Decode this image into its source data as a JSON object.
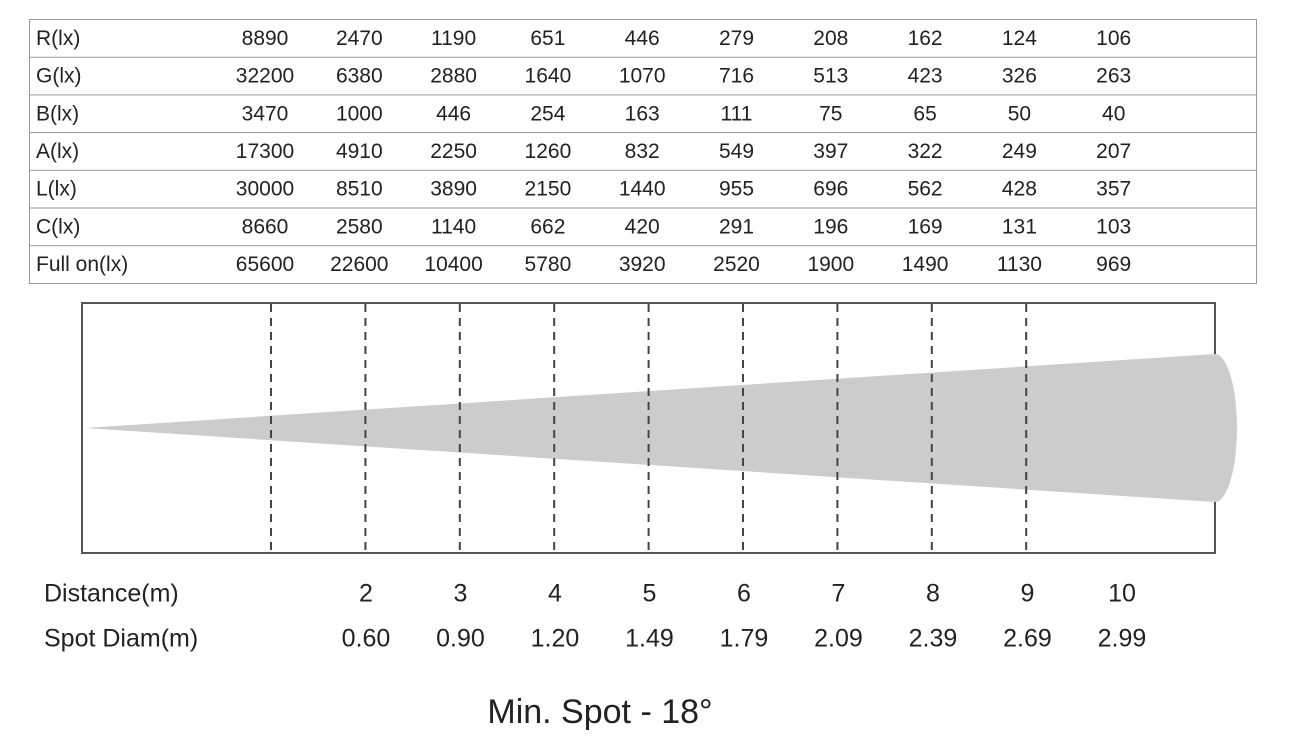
{
  "table": {
    "rows": [
      {
        "label": "R(lx)",
        "values": [
          "8890",
          "2470",
          "1190",
          "651",
          "446",
          "279",
          "208",
          "162",
          "124",
          "106"
        ]
      },
      {
        "label": "G(lx)",
        "values": [
          "32200",
          "6380",
          "2880",
          "1640",
          "1070",
          "716",
          "513",
          "423",
          "326",
          "263"
        ]
      },
      {
        "label": "B(lx)",
        "values": [
          "3470",
          "1000",
          "446",
          "254",
          "163",
          "111",
          "75",
          "65",
          "50",
          "40"
        ]
      },
      {
        "label": "A(lx)",
        "values": [
          "17300",
          "4910",
          "2250",
          "1260",
          "832",
          "549",
          "397",
          "322",
          "249",
          "207"
        ]
      },
      {
        "label": "L(lx)",
        "values": [
          "30000",
          "8510",
          "3890",
          "2150",
          "1440",
          "955",
          "696",
          "562",
          "428",
          "357"
        ]
      },
      {
        "label": "C(lx)",
        "values": [
          "8660",
          "2580",
          "1140",
          "662",
          "420",
          "291",
          "196",
          "169",
          "131",
          "103"
        ]
      },
      {
        "label": "Full on(lx)",
        "values": [
          "65600",
          "22600",
          "10400",
          "5780",
          "3920",
          "2520",
          "1900",
          "1490",
          "1130",
          "969"
        ]
      }
    ]
  },
  "diagram": {
    "distance": {
      "label": "Distance(m)",
      "values": [
        "2",
        "3",
        "4",
        "5",
        "6",
        "7",
        "8",
        "9",
        "10"
      ]
    },
    "spot_diameter": {
      "label": "Spot Diam(m)",
      "values": [
        "0.60",
        "0.90",
        "1.20",
        "1.49",
        "1.79",
        "2.09",
        "2.39",
        "2.69",
        "2.99"
      ]
    }
  },
  "caption": "Min. Spot - 18°"
}
